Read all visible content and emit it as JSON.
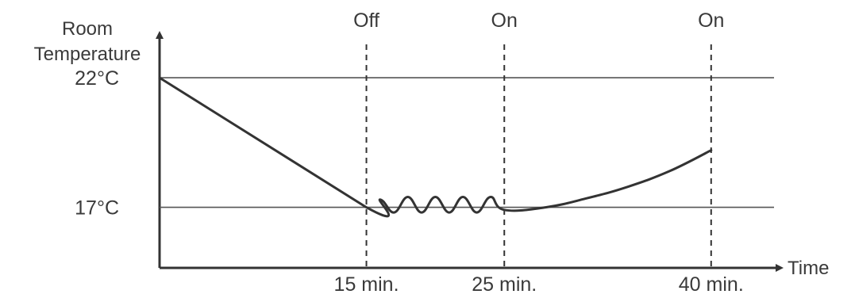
{
  "chart_data": {
    "type": "line",
    "title": "",
    "ylabel_lines": [
      "Room",
      "Temperature"
    ],
    "xlabel": "Time",
    "y_ticks": [
      {
        "value": 22,
        "label": "22°C"
      },
      {
        "value": 17,
        "label": "17°C"
      }
    ],
    "x_ticks": [
      {
        "value": 15,
        "label": "15 min."
      },
      {
        "value": 25,
        "label": "25 min."
      },
      {
        "value": 40,
        "label": "40 min."
      }
    ],
    "events": [
      {
        "x": 15,
        "label": "Off"
      },
      {
        "x": 25,
        "label": "On"
      },
      {
        "x": 40,
        "label": "On"
      }
    ],
    "reference_lines_y": [
      22,
      17
    ],
    "xlim": [
      0,
      46
    ],
    "ylim": [
      13.5,
      25
    ],
    "series": [
      {
        "points": [
          [
            0,
            22.0
          ],
          [
            15,
            17.0
          ],
          [
            16,
            17.3
          ],
          [
            17,
            16.8
          ],
          [
            18,
            17.4
          ],
          [
            19,
            16.8
          ],
          [
            20,
            17.4
          ],
          [
            21,
            16.8
          ],
          [
            22,
            17.4
          ],
          [
            23,
            16.8
          ],
          [
            24,
            17.4
          ],
          [
            25,
            16.9
          ],
          [
            28,
            17.0
          ],
          [
            31,
            17.35
          ],
          [
            34,
            17.8
          ],
          [
            37,
            18.4
          ],
          [
            40,
            19.2
          ]
        ]
      }
    ]
  }
}
